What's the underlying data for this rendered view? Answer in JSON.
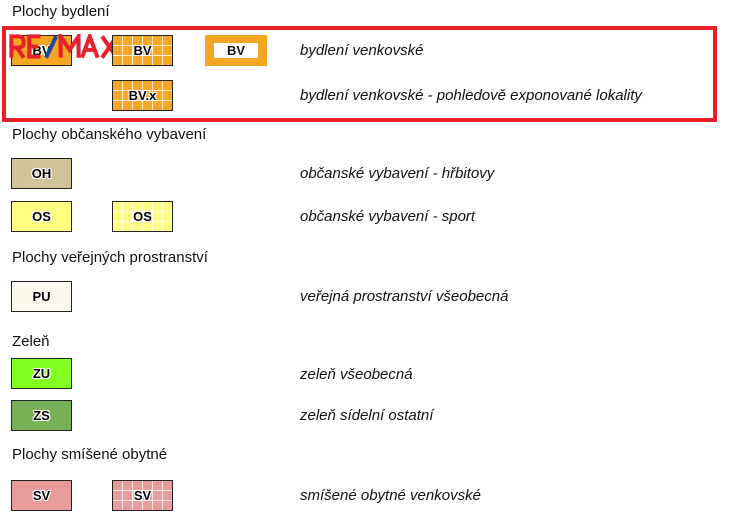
{
  "watermark": "RE/MAX",
  "colors": {
    "bv": "#f5a623",
    "oh": "#cfc39a",
    "os": "#ffff80",
    "pu": "#fdf8ee",
    "zu": "#80ff20",
    "zs": "#78b055",
    "sv": "#e89b9b",
    "highlight": "#e8202a"
  },
  "sections": [
    {
      "heading": "Plochy bydlení",
      "rows": [
        {
          "codes": [
            "BV",
            "BV",
            "BV"
          ],
          "desc": "bydlení venkovské"
        },
        {
          "codes": [
            "BV.x"
          ],
          "desc": "bydlení venkovské - pohledově exponované lokality"
        }
      ]
    },
    {
      "heading": "Plochy občanského vybavení",
      "rows": [
        {
          "codes": [
            "OH"
          ],
          "desc": "občanské vybavení - hřbitovy"
        },
        {
          "codes": [
            "OS",
            "OS"
          ],
          "desc": "občanské vybavení - sport"
        }
      ]
    },
    {
      "heading": "Plochy veřejných prostranství",
      "rows": [
        {
          "codes": [
            "PU"
          ],
          "desc": "veřejná prostranství všeobecná"
        }
      ]
    },
    {
      "heading": "Zeleň",
      "rows": [
        {
          "codes": [
            "ZU"
          ],
          "desc": "zeleň všeobecná"
        },
        {
          "codes": [
            "ZS"
          ],
          "desc": "zeleň sídelní ostatní"
        }
      ]
    },
    {
      "heading": "Plochy smíšené obytné",
      "rows": [
        {
          "codes": [
            "SV",
            "SV"
          ],
          "desc": "smíšené obytné venkovské"
        }
      ]
    }
  ]
}
